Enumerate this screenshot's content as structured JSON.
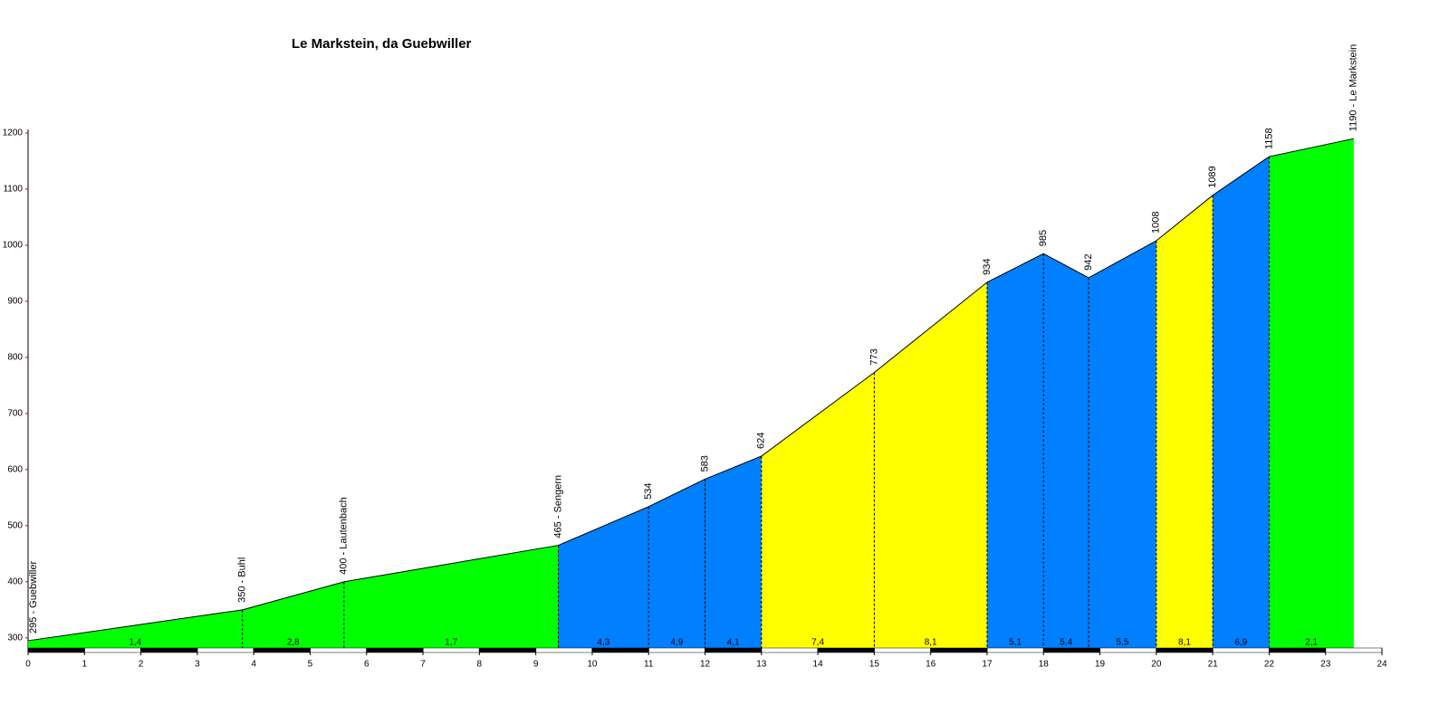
{
  "chart_data": {
    "type": "area",
    "title": "Le Markstein, da Guebwiller",
    "x": [
      0,
      3.8,
      5.6,
      9.4,
      11,
      12,
      13,
      15,
      17,
      18,
      18.8,
      20,
      21,
      22,
      23.5
    ],
    "values": [
      295,
      350,
      400,
      465,
      534,
      583,
      624,
      773,
      934,
      985,
      942,
      1008,
      1089,
      1158,
      1190
    ],
    "value_labels": [
      "295 - Guebwiller",
      "350 - Buhl",
      "400 - Lautenbach",
      "465 - Sengern",
      "534",
      "583",
      "624",
      "773",
      "934",
      "985",
      "942",
      "1008",
      "1089",
      "1158",
      "1190 - Le Markstein"
    ],
    "segments": {
      "values": [
        1.4,
        2.8,
        1.7,
        4.3,
        4.9,
        4.1,
        7.4,
        8.1,
        5.1,
        5.4,
        5.5,
        8.1,
        6.9,
        2.1
      ],
      "value_labels": [
        "1,4",
        "2,8",
        "1,7",
        "4,3",
        "4,9",
        "4,1",
        "7,4",
        "8,1",
        "5,1",
        "5,4",
        "5,5",
        "8,1",
        "6,9",
        "2,1"
      ],
      "colors": [
        "#00ff00",
        "#00ff00",
        "#00ff00",
        "#0080ff",
        "#0080ff",
        "#0080ff",
        "#ffff00",
        "#ffff00",
        "#0080ff",
        "#0080ff",
        "#0080ff",
        "#ffff00",
        "#0080ff",
        "#00ff00"
      ]
    },
    "xlim": [
      0,
      24
    ],
    "xticks": [
      0,
      1,
      2,
      3,
      4,
      5,
      6,
      7,
      8,
      9,
      10,
      11,
      12,
      13,
      14,
      15,
      16,
      17,
      18,
      19,
      20,
      21,
      22,
      23,
      24
    ],
    "ylim": [
      282,
      1200
    ],
    "yticks": [
      300,
      400,
      500,
      600,
      700,
      800,
      900,
      1000,
      1100,
      1200
    ]
  }
}
